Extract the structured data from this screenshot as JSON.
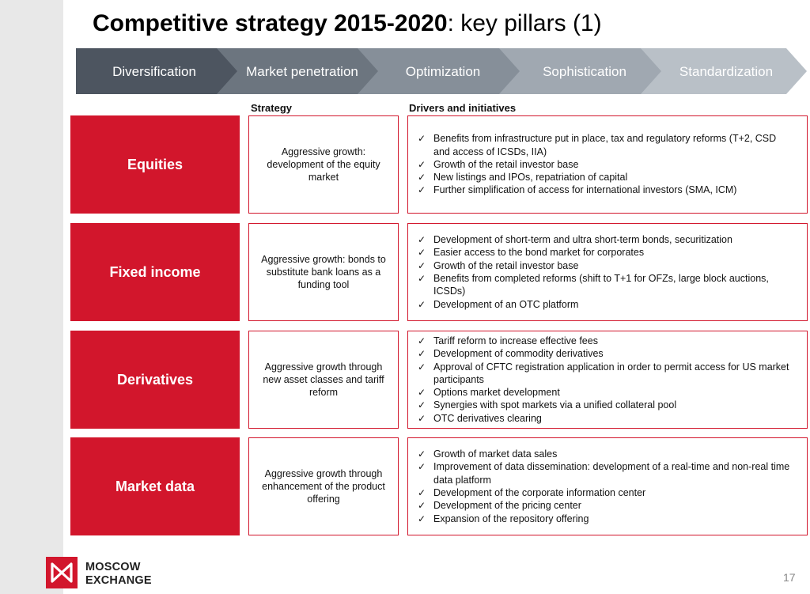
{
  "title": {
    "bold": "Competitive strategy 2015-2020",
    "rest": ": key pillars (1)"
  },
  "pillars": [
    {
      "label": "Diversification",
      "color": "#4d5560"
    },
    {
      "label": "Market penetration",
      "color": "#6c757f"
    },
    {
      "label": "Optimization",
      "color": "#868f99"
    },
    {
      "label": "Sophistication",
      "color": "#a0a8b1"
    },
    {
      "label": "Standardization",
      "color": "#b9c0c7"
    }
  ],
  "headers": {
    "strategy": "Strategy",
    "drivers": "Drivers and initiatives"
  },
  "check_glyph": "✓",
  "rows": [
    {
      "label": "Equities",
      "strategy": "Aggressive growth: development of the equity market",
      "drivers": [
        "Benefits from infrastructure put in place, tax and regulatory reforms (T+2, CSD and access of ICSDs, IIA)",
        "Growth of the retail investor base",
        "New listings and IPOs, repatriation of capital",
        "Further simplification of access for international investors (SMA, ICM)"
      ]
    },
    {
      "label": "Fixed income",
      "strategy": "Aggressive growth: bonds to substitute bank loans as a funding tool",
      "drivers": [
        "Development of short-term and ultra short-term bonds, securitization",
        "Easier access to the bond market for corporates",
        "Growth of the retail investor base",
        "Benefits from completed reforms (shift to T+1 for OFZs, large block auctions, ICSDs)",
        "Development of an OTC platform"
      ]
    },
    {
      "label": "Derivatives",
      "strategy": "Aggressive growth through new asset classes and tariff reform",
      "drivers": [
        "Tariff reform to increase effective fees",
        "Development of commodity derivatives",
        "Approval of CFTC registration application in order to permit access for US market participants",
        "Options market development",
        "Synergies with spot markets via a unified collateral pool",
        "OTC derivatives clearing"
      ]
    },
    {
      "label": "Market data",
      "strategy": "Aggressive growth through enhancement of the product offering",
      "drivers": [
        "Growth of market data sales",
        "Improvement of data dissemination: development of a real-time and non-real time data platform",
        "Development of the corporate information center",
        "Development of the pricing center",
        "Expansion of the repository offering"
      ]
    }
  ],
  "footer": {
    "logo_line1": "MOSCOW",
    "logo_line2": "EXCHANGE",
    "page_number": "17"
  },
  "accent_color": "#d2162c"
}
